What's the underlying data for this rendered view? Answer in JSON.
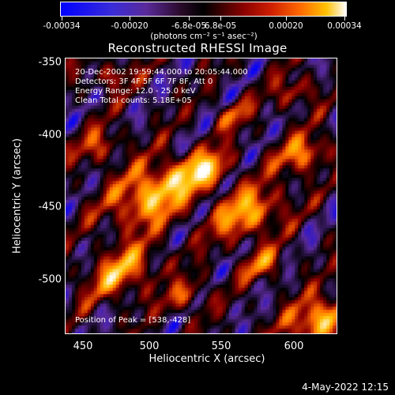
{
  "colorbar": {
    "ticks": [
      "-0.00034",
      "-0.00020",
      "-6.8e-05",
      "6.8e-05",
      "0.00020",
      "0.00034"
    ],
    "unit": "(photons cm⁻² s⁻¹ asec⁻²)",
    "colors": [
      "#0000ff",
      "#5a2a9a",
      "#000000",
      "#8a0000",
      "#ff6a00",
      "#ffc000",
      "#ffffff"
    ]
  },
  "title": "Reconstructed RHESSI Image",
  "annotations": {
    "time": "20-Dec-2002 19:59:44.000 to 20:05:44.000",
    "detectors": "Detectors: 3F 4F 5F 6F 7F 8F, Att 0",
    "energy": "Energy Range: 12.0 - 25.0 keV",
    "clean": "Clean    Total counts: 5.18E+05",
    "peak": "Position of Peak = [538,-428]"
  },
  "axes": {
    "xlabel": "Heliocentric X (arcsec)",
    "ylabel": "Heliocentric Y (arcsec)",
    "xticks": [
      "450",
      "500",
      "550",
      "600"
    ],
    "yticks": [
      "-350",
      "-400",
      "-450",
      "-500"
    ],
    "xrange": [
      437,
      630
    ],
    "yrange": [
      -540,
      -348
    ]
  },
  "footer": "4-May-2022 12:15"
}
